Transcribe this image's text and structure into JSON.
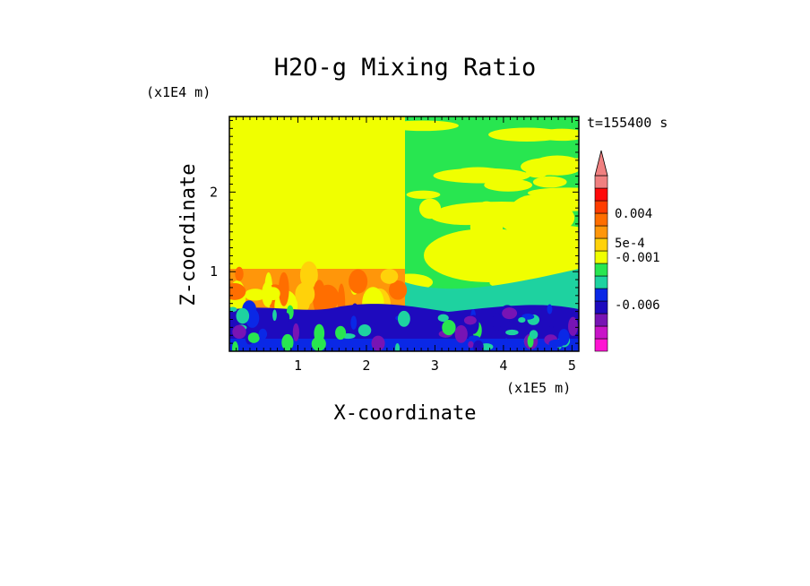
{
  "chart_data": {
    "type": "heatmap",
    "title": "H2O-g Mixing Ratio",
    "xlabel": "X-coordinate",
    "ylabel": "Z-coordinate",
    "x_unit": "(x1E5 m)",
    "y_unit": "(x1E4 m)",
    "time_label": "t=155400 s",
    "xlim": [
      0,
      5.1
    ],
    "ylim": [
      0,
      2.95
    ],
    "x_ticks": [
      1,
      2,
      3,
      4,
      5
    ],
    "y_ticks": [
      1,
      2
    ],
    "colorbar": {
      "colors": [
        "#ff14d2",
        "#c814c8",
        "#7814b4",
        "#1e0abe",
        "#0a28e6",
        "#1ed2a0",
        "#28e650",
        "#f0ff00",
        "#ffd20a",
        "#ff960a",
        "#ff6e00",
        "#ff3c00",
        "#ff0a0a",
        "#f08080"
      ],
      "labels": [
        "0.004",
        "5e-4",
        "-0.001",
        "-0.006"
      ],
      "extend": "max"
    },
    "regions": {
      "upper_left": "#f0ff00",
      "upper_right_background": "#28e650",
      "lower_band": "#1e0abe",
      "surface_band": "#0a28e6",
      "boundary_layer": "#ff960a",
      "cyan_transition": "#1ed2a0"
    }
  }
}
